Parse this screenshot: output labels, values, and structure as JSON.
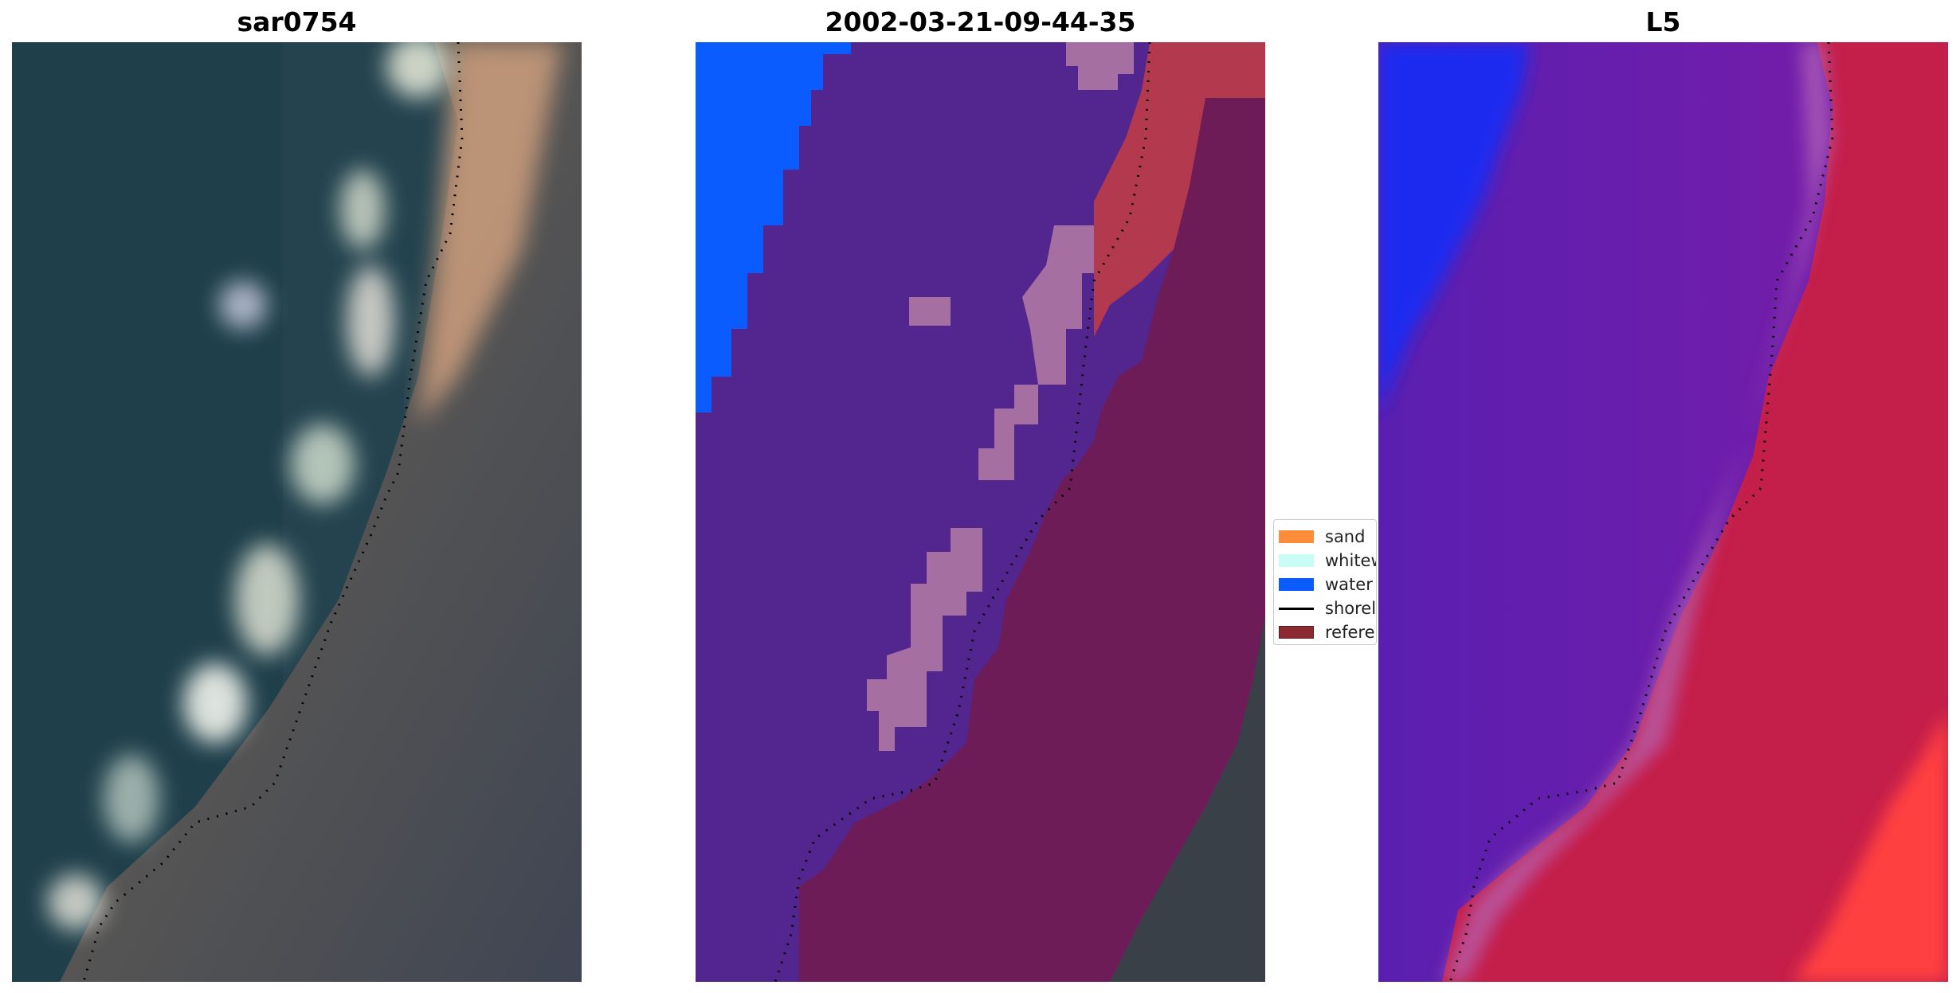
{
  "panels": [
    {
      "title": "sar0754"
    },
    {
      "title": "2002-03-21-09-44-35"
    },
    {
      "title": "L5"
    }
  ],
  "legend": {
    "items": [
      {
        "label": "sand",
        "color": "#ff8c3a"
      },
      {
        "label": "whitewater",
        "color": "#c8fdf6"
      },
      {
        "label": "water",
        "color": "#0a5cff"
      },
      {
        "label": "shoreline",
        "color": "#000000"
      },
      {
        "label": "reference",
        "color": "#8b2a30"
      }
    ]
  }
}
